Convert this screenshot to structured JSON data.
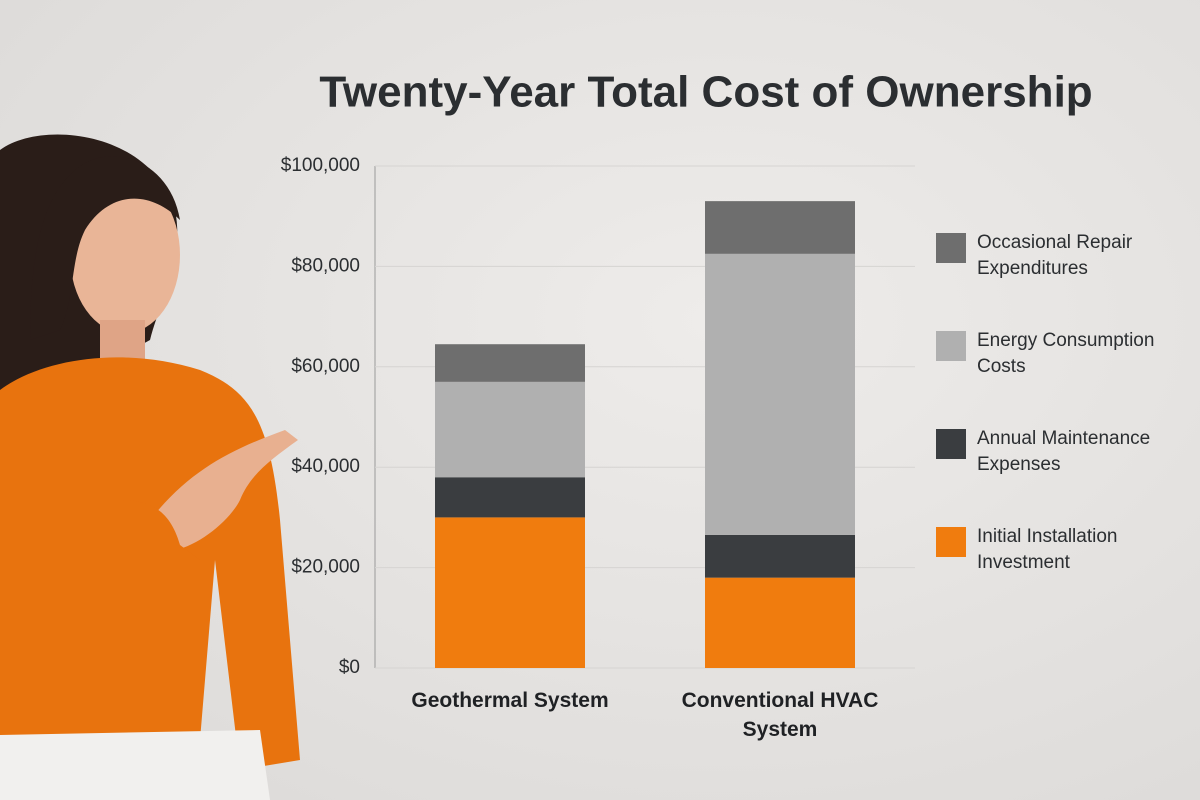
{
  "chart_data": {
    "type": "bar",
    "stacked": true,
    "title": "Twenty-Year Total Cost of Ownership",
    "categories": [
      "Geothermal System",
      "Conventional HVAC System"
    ],
    "series": [
      {
        "name": "Initial Installation Investment",
        "color": "#f07c0e",
        "values": [
          30000,
          18000
        ]
      },
      {
        "name": "Annual Maintenance Expenses",
        "color": "#3a3d40",
        "values": [
          8000,
          8500
        ]
      },
      {
        "name": "Energy Consumption Costs",
        "color": "#b0b0b0",
        "values": [
          19000,
          56000
        ]
      },
      {
        "name": "Occasional Repair Expenditures",
        "color": "#6e6e6e",
        "values": [
          7500,
          10500
        ]
      }
    ],
    "ylim": [
      0,
      100000
    ],
    "yticks": [
      {
        "value": 0,
        "label": "$0"
      },
      {
        "value": 20000,
        "label": "$20,000"
      },
      {
        "value": 40000,
        "label": "$40,000"
      },
      {
        "value": 60000,
        "label": "$60,000"
      },
      {
        "value": 80000,
        "label": "$80,000"
      },
      {
        "value": 100000,
        "label": "$100,000"
      }
    ],
    "grid": true,
    "legend": "right"
  }
}
